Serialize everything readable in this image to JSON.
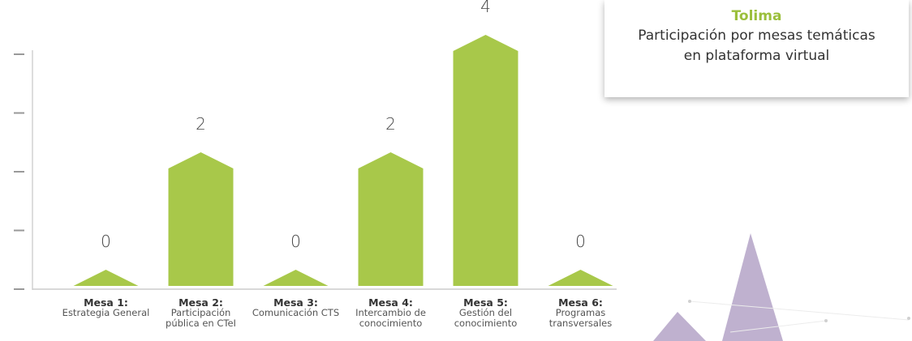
{
  "chart_data": {
    "type": "bar",
    "title": "Tolima",
    "subtitle": "Participación por mesas temáticas en plataforma virtual",
    "categories": [
      "Mesa 1:",
      "Mesa 2:",
      "Mesa 3:",
      "Mesa 4:",
      "Mesa 5:",
      "Mesa 6:"
    ],
    "category_descriptions": [
      "Estrategia General",
      "Participación pública en CTeI",
      "Comunicación CTS",
      "Intercambio de conocimiento",
      "Gestión del conocimiento",
      "Programas transversales"
    ],
    "values": [
      0,
      2,
      0,
      2,
      4,
      0
    ],
    "color": "#a8c84a",
    "ylim": [
      0,
      4
    ],
    "yticks": [
      0,
      1,
      2,
      3,
      4
    ],
    "ytick_labels": false,
    "grid": false
  }
}
